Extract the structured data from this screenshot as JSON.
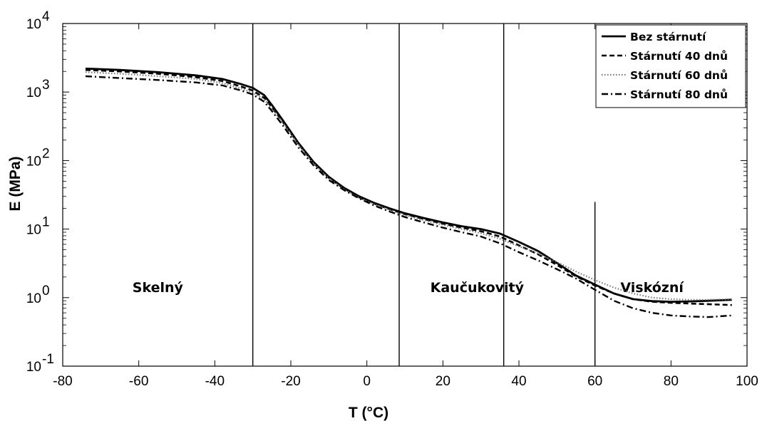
{
  "chart_data": {
    "type": "line",
    "xlabel": "T (°C)",
    "ylabel": "E  (MPa)",
    "xlim": [
      -80,
      100
    ],
    "ylim": [
      0.1,
      10000
    ],
    "yscale": "log",
    "xticks": [
      "-80",
      "-60",
      "-40",
      "-20",
      "0",
      "20",
      "40",
      "60",
      "80",
      "100"
    ],
    "yticks": [
      {
        "base": "10",
        "exp": "-1"
      },
      {
        "base": "10",
        "exp": "0"
      },
      {
        "base": "10",
        "exp": "1"
      },
      {
        "base": "10",
        "exp": "2"
      },
      {
        "base": "10",
        "exp": "3"
      },
      {
        "base": "10",
        "exp": "4"
      }
    ],
    "grid": false,
    "legend_position": "top-right",
    "vertical_lines": [
      {
        "x": -30,
        "ymax": 10000
      },
      {
        "x": 8.5,
        "ymax": 10000
      },
      {
        "x": 36,
        "ymax": 10000
      },
      {
        "x": 60,
        "ymax": 25
      }
    ],
    "annotations": [
      {
        "text": "Skelný",
        "x": -55,
        "y": 1.2
      },
      {
        "text": "Kaučukovitý",
        "x": 29,
        "y": 1.2
      },
      {
        "text": "Viskózní",
        "x": 75,
        "y": 1.2
      }
    ],
    "series": [
      {
        "name": "Bez stárnutí",
        "style": "solid",
        "x": [
          -74,
          -65,
          -55,
          -45,
          -38,
          -33,
          -30,
          -27,
          -25,
          -22,
          -18,
          -14,
          -10,
          -6,
          -2,
          2,
          6,
          10,
          15,
          20,
          25,
          30,
          35,
          40,
          45,
          50,
          55,
          60,
          65,
          70,
          75,
          80,
          85,
          90,
          96
        ],
        "y": [
          2200,
          2100,
          1950,
          1750,
          1550,
          1300,
          1150,
          900,
          650,
          380,
          180,
          95,
          58,
          40,
          30,
          24,
          20,
          17,
          14.5,
          12.5,
          11,
          10,
          8.6,
          6.5,
          4.8,
          3.2,
          2.1,
          1.55,
          1.15,
          0.95,
          0.89,
          0.87,
          0.88,
          0.9,
          0.93
        ]
      },
      {
        "name": "Stárnutí 40 dnů",
        "style": "dashed",
        "x": [
          -74,
          -65,
          -55,
          -45,
          -38,
          -33,
          -30,
          -27,
          -25,
          -22,
          -18,
          -14,
          -10,
          -6,
          -2,
          2,
          6,
          10,
          15,
          20,
          25,
          30,
          35,
          40,
          45,
          50,
          55,
          60,
          65,
          70,
          75,
          80,
          85,
          90,
          96
        ],
        "y": [
          2100,
          2000,
          1850,
          1650,
          1450,
          1200,
          1050,
          820,
          600,
          360,
          175,
          92,
          56,
          39,
          29,
          23.5,
          19.5,
          16.5,
          14,
          12,
          10.5,
          9.3,
          7.8,
          5.8,
          4.3,
          3.0,
          2.05,
          1.5,
          1.15,
          0.95,
          0.87,
          0.84,
          0.82,
          0.8,
          0.78
        ]
      },
      {
        "name": "Stárnutí 60 dnů",
        "style": "dotted",
        "x": [
          -74,
          -65,
          -55,
          -45,
          -38,
          -33,
          -30,
          -27,
          -25,
          -22,
          -18,
          -14,
          -10,
          -6,
          -2,
          2,
          6,
          10,
          15,
          20,
          25,
          30,
          35,
          40,
          45,
          50,
          55,
          60,
          65,
          70,
          75,
          80,
          85,
          90,
          96
        ],
        "y": [
          1950,
          1850,
          1700,
          1550,
          1350,
          1120,
          980,
          780,
          580,
          350,
          170,
          90,
          55,
          38,
          28.5,
          23,
          19,
          16,
          13.5,
          11.5,
          10,
          8.7,
          7.2,
          5.6,
          4.4,
          3.3,
          2.4,
          1.8,
          1.4,
          1.15,
          1.0,
          0.95,
          0.93,
          0.93,
          0.95
        ]
      },
      {
        "name": "Stárnutí 80 dnů",
        "style": "dashdot",
        "x": [
          -74,
          -65,
          -55,
          -45,
          -38,
          -33,
          -30,
          -27,
          -25,
          -22,
          -18,
          -14,
          -10,
          -6,
          -2,
          2,
          6,
          10,
          15,
          20,
          25,
          30,
          35,
          40,
          45,
          50,
          55,
          60,
          65,
          70,
          75,
          80,
          85,
          90,
          96
        ],
        "y": [
          1700,
          1600,
          1500,
          1380,
          1250,
          1050,
          920,
          720,
          530,
          320,
          155,
          85,
          52,
          37,
          28,
          22,
          18,
          15,
          12.5,
          10.5,
          9,
          7.8,
          6.2,
          4.6,
          3.5,
          2.6,
          1.9,
          1.3,
          0.9,
          0.7,
          0.6,
          0.55,
          0.53,
          0.52,
          0.55
        ]
      }
    ]
  }
}
